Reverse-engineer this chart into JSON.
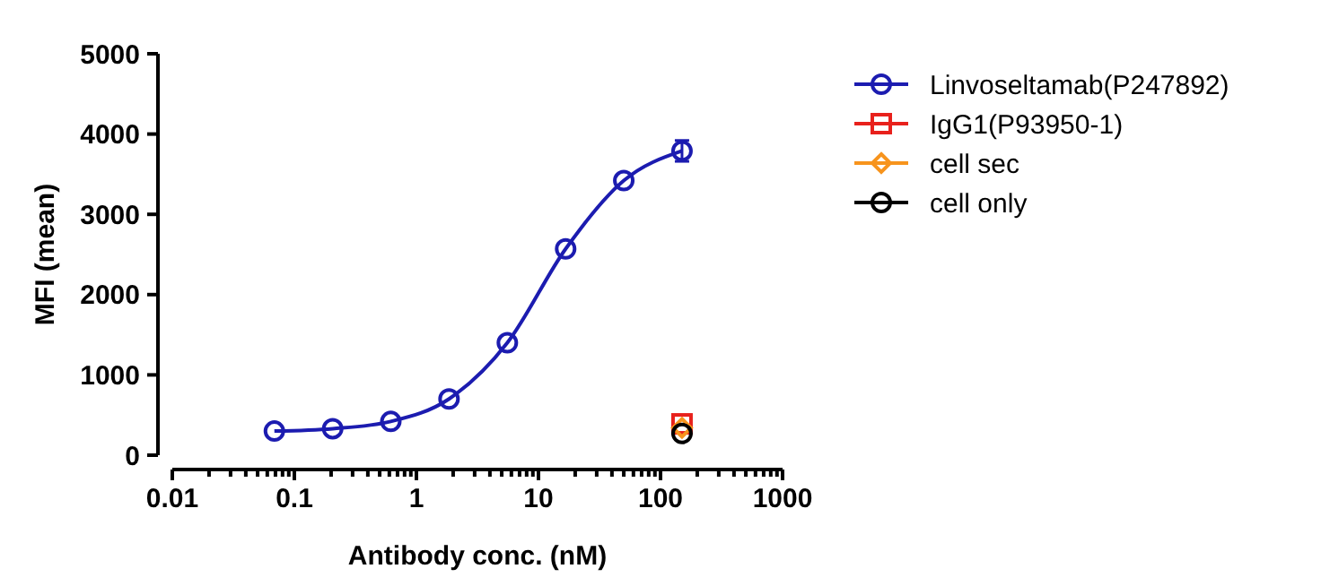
{
  "chart_data": {
    "type": "line",
    "xlabel": "Antibody conc. (nM)",
    "ylabel": "MFI (mean)",
    "log": "x",
    "legend": "right",
    "grid": false,
    "xlim": [
      0.01,
      1000
    ],
    "ylim": [
      0,
      5000
    ],
    "yticks": [
      0,
      1000,
      2000,
      3000,
      4000,
      5000
    ],
    "xticks": [
      0.01,
      {
        "value": 0.02,
        "label": null
      },
      {
        "value": 0.03,
        "label": null
      },
      {
        "value": 0.04,
        "label": null
      },
      {
        "value": 0.05,
        "label": null
      },
      {
        "value": 0.06,
        "label": null
      },
      {
        "value": 0.07,
        "label": null
      },
      {
        "value": 0.08,
        "label": null
      },
      {
        "value": 0.09,
        "label": null
      },
      0.1,
      {
        "value": 0.2,
        "label": null
      },
      {
        "value": 0.3,
        "label": null
      },
      {
        "value": 0.4,
        "label": null
      },
      {
        "value": 0.5,
        "label": null
      },
      {
        "value": 0.6,
        "label": null
      },
      {
        "value": 0.7,
        "label": null
      },
      {
        "value": 0.8,
        "label": null
      },
      {
        "value": 0.9,
        "label": null
      },
      1,
      {
        "value": 2,
        "label": null
      },
      {
        "value": 3,
        "label": null
      },
      {
        "value": 4,
        "label": null
      },
      {
        "value": 5,
        "label": null
      },
      {
        "value": 6,
        "label": null
      },
      {
        "value": 7,
        "label": null
      },
      {
        "value": 8,
        "label": null
      },
      {
        "value": 9,
        "label": null
      },
      10,
      {
        "value": 20,
        "label": null
      },
      {
        "value": 30,
        "label": null
      },
      {
        "value": 40,
        "label": null
      },
      {
        "value": 50,
        "label": null
      },
      {
        "value": 60,
        "label": null
      },
      {
        "value": 70,
        "label": null
      },
      {
        "value": 80,
        "label": null
      },
      {
        "value": 90,
        "label": null
      },
      100,
      {
        "value": 200,
        "label": null
      },
      {
        "value": 300,
        "label": null
      },
      {
        "value": 400,
        "label": null
      },
      {
        "value": 500,
        "label": null
      },
      {
        "value": 600,
        "label": null
      },
      {
        "value": 700,
        "label": null
      },
      {
        "value": 800,
        "label": null
      },
      {
        "value": 900,
        "label": null
      },
      1000
    ],
    "series": [
      {
        "name": "Linvoseltamab(P247892)",
        "type": "line",
        "color": "#1c1cb0",
        "marker": "circle",
        "x": [
          0.0686,
          0.206,
          0.617,
          1.85,
          5.56,
          16.7,
          50,
          150
        ],
        "values": [
          300,
          330,
          420,
          700,
          1400,
          2570,
          3420,
          3790
        ],
        "errors": [
          null,
          null,
          null,
          null,
          null,
          null,
          null,
          130
        ]
      },
      {
        "name": "IgG1(P93950-1)",
        "type": "scatter",
        "color": "#e8211c",
        "marker": "square",
        "x": [
          150
        ],
        "values": [
          390
        ]
      },
      {
        "name": "cell sec",
        "type": "scatter",
        "color": "#f7941d",
        "marker": "diamond",
        "x": [
          150
        ],
        "values": [
          340
        ]
      },
      {
        "name": "cell only",
        "type": "scatter",
        "color": "#000000",
        "marker": "circle",
        "x": [
          150
        ],
        "values": [
          270
        ]
      }
    ]
  }
}
